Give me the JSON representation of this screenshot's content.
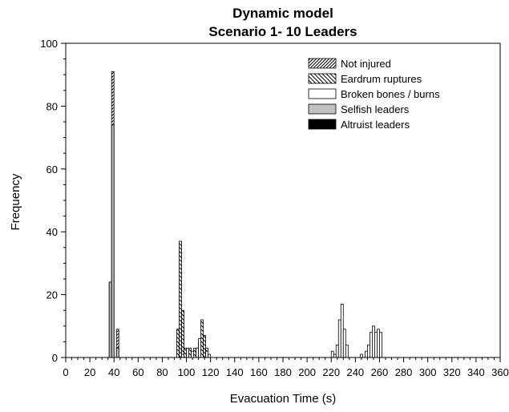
{
  "chart_data": {
    "type": "bar",
    "title": "Dynamic model",
    "subtitle": "Scenario 1- 10 Leaders",
    "xlabel": "Evacuation Time (s)",
    "ylabel": "Frequency",
    "xlim": [
      0,
      360
    ],
    "ylim": [
      0,
      100
    ],
    "x_ticks": [
      "0",
      "20",
      "40",
      "60",
      "80",
      "100",
      "120",
      "140",
      "160",
      "180",
      "200",
      "220",
      "240",
      "260",
      "280",
      "300",
      "320",
      "340",
      "360"
    ],
    "y_ticks": [
      "0",
      "20",
      "40",
      "60",
      "80",
      "100"
    ],
    "bin_width": 2,
    "grid": false,
    "legend_position": "top-right",
    "legend": [
      {
        "name": "Not injured",
        "pattern": "forward-diagonal"
      },
      {
        "name": "Eardrum ruptures",
        "pattern": "back-diagonal"
      },
      {
        "name": "Broken bones / burns",
        "pattern": "white"
      },
      {
        "name": "Selfish leaders",
        "pattern": "gray",
        "color": "#c0c0c0"
      },
      {
        "name": "Altruist leaders",
        "pattern": "black",
        "color": "#000000"
      }
    ],
    "series": [
      {
        "name": "Not injured",
        "pattern": "forward-diagonal",
        "points": [
          {
            "x": 37,
            "y": 24
          },
          {
            "x": 39,
            "y": 91
          },
          {
            "x": 43,
            "y": 9
          }
        ]
      },
      {
        "name": "Eardrum ruptures",
        "pattern": "back-diagonal",
        "points": [
          {
            "x": 93,
            "y": 9
          },
          {
            "x": 95,
            "y": 37
          },
          {
            "x": 97,
            "y": 15
          },
          {
            "x": 99,
            "y": 3
          },
          {
            "x": 103,
            "y": 3
          },
          {
            "x": 107,
            "y": 3
          },
          {
            "x": 111,
            "y": 5
          },
          {
            "x": 113,
            "y": 12
          },
          {
            "x": 115,
            "y": 7
          },
          {
            "x": 117,
            "y": 3
          }
        ]
      },
      {
        "name": "Broken bones / burns",
        "pattern": "white",
        "points": [
          {
            "x": 97,
            "y": 1
          },
          {
            "x": 101,
            "y": 3
          },
          {
            "x": 105,
            "y": 2
          },
          {
            "x": 109,
            "y": 3
          },
          {
            "x": 111,
            "y": 6
          },
          {
            "x": 117,
            "y": 2
          },
          {
            "x": 119,
            "y": 1
          },
          {
            "x": 221,
            "y": 2
          },
          {
            "x": 223,
            "y": 1
          },
          {
            "x": 225,
            "y": 4
          },
          {
            "x": 227,
            "y": 12
          },
          {
            "x": 229,
            "y": 17
          },
          {
            "x": 231,
            "y": 9
          },
          {
            "x": 233,
            "y": 4
          },
          {
            "x": 245,
            "y": 1
          },
          {
            "x": 249,
            "y": 2
          },
          {
            "x": 251,
            "y": 4
          },
          {
            "x": 253,
            "y": 8
          },
          {
            "x": 255,
            "y": 10
          },
          {
            "x": 257,
            "y": 8
          },
          {
            "x": 259,
            "y": 9
          },
          {
            "x": 261,
            "y": 8
          }
        ]
      },
      {
        "name": "Selfish leaders",
        "pattern": "gray",
        "points": [
          {
            "x": 37,
            "y": 24
          },
          {
            "x": 39,
            "y": 74
          },
          {
            "x": 43,
            "y": 3
          }
        ]
      },
      {
        "name": "Altruist leaders",
        "pattern": "black",
        "points": []
      }
    ]
  }
}
